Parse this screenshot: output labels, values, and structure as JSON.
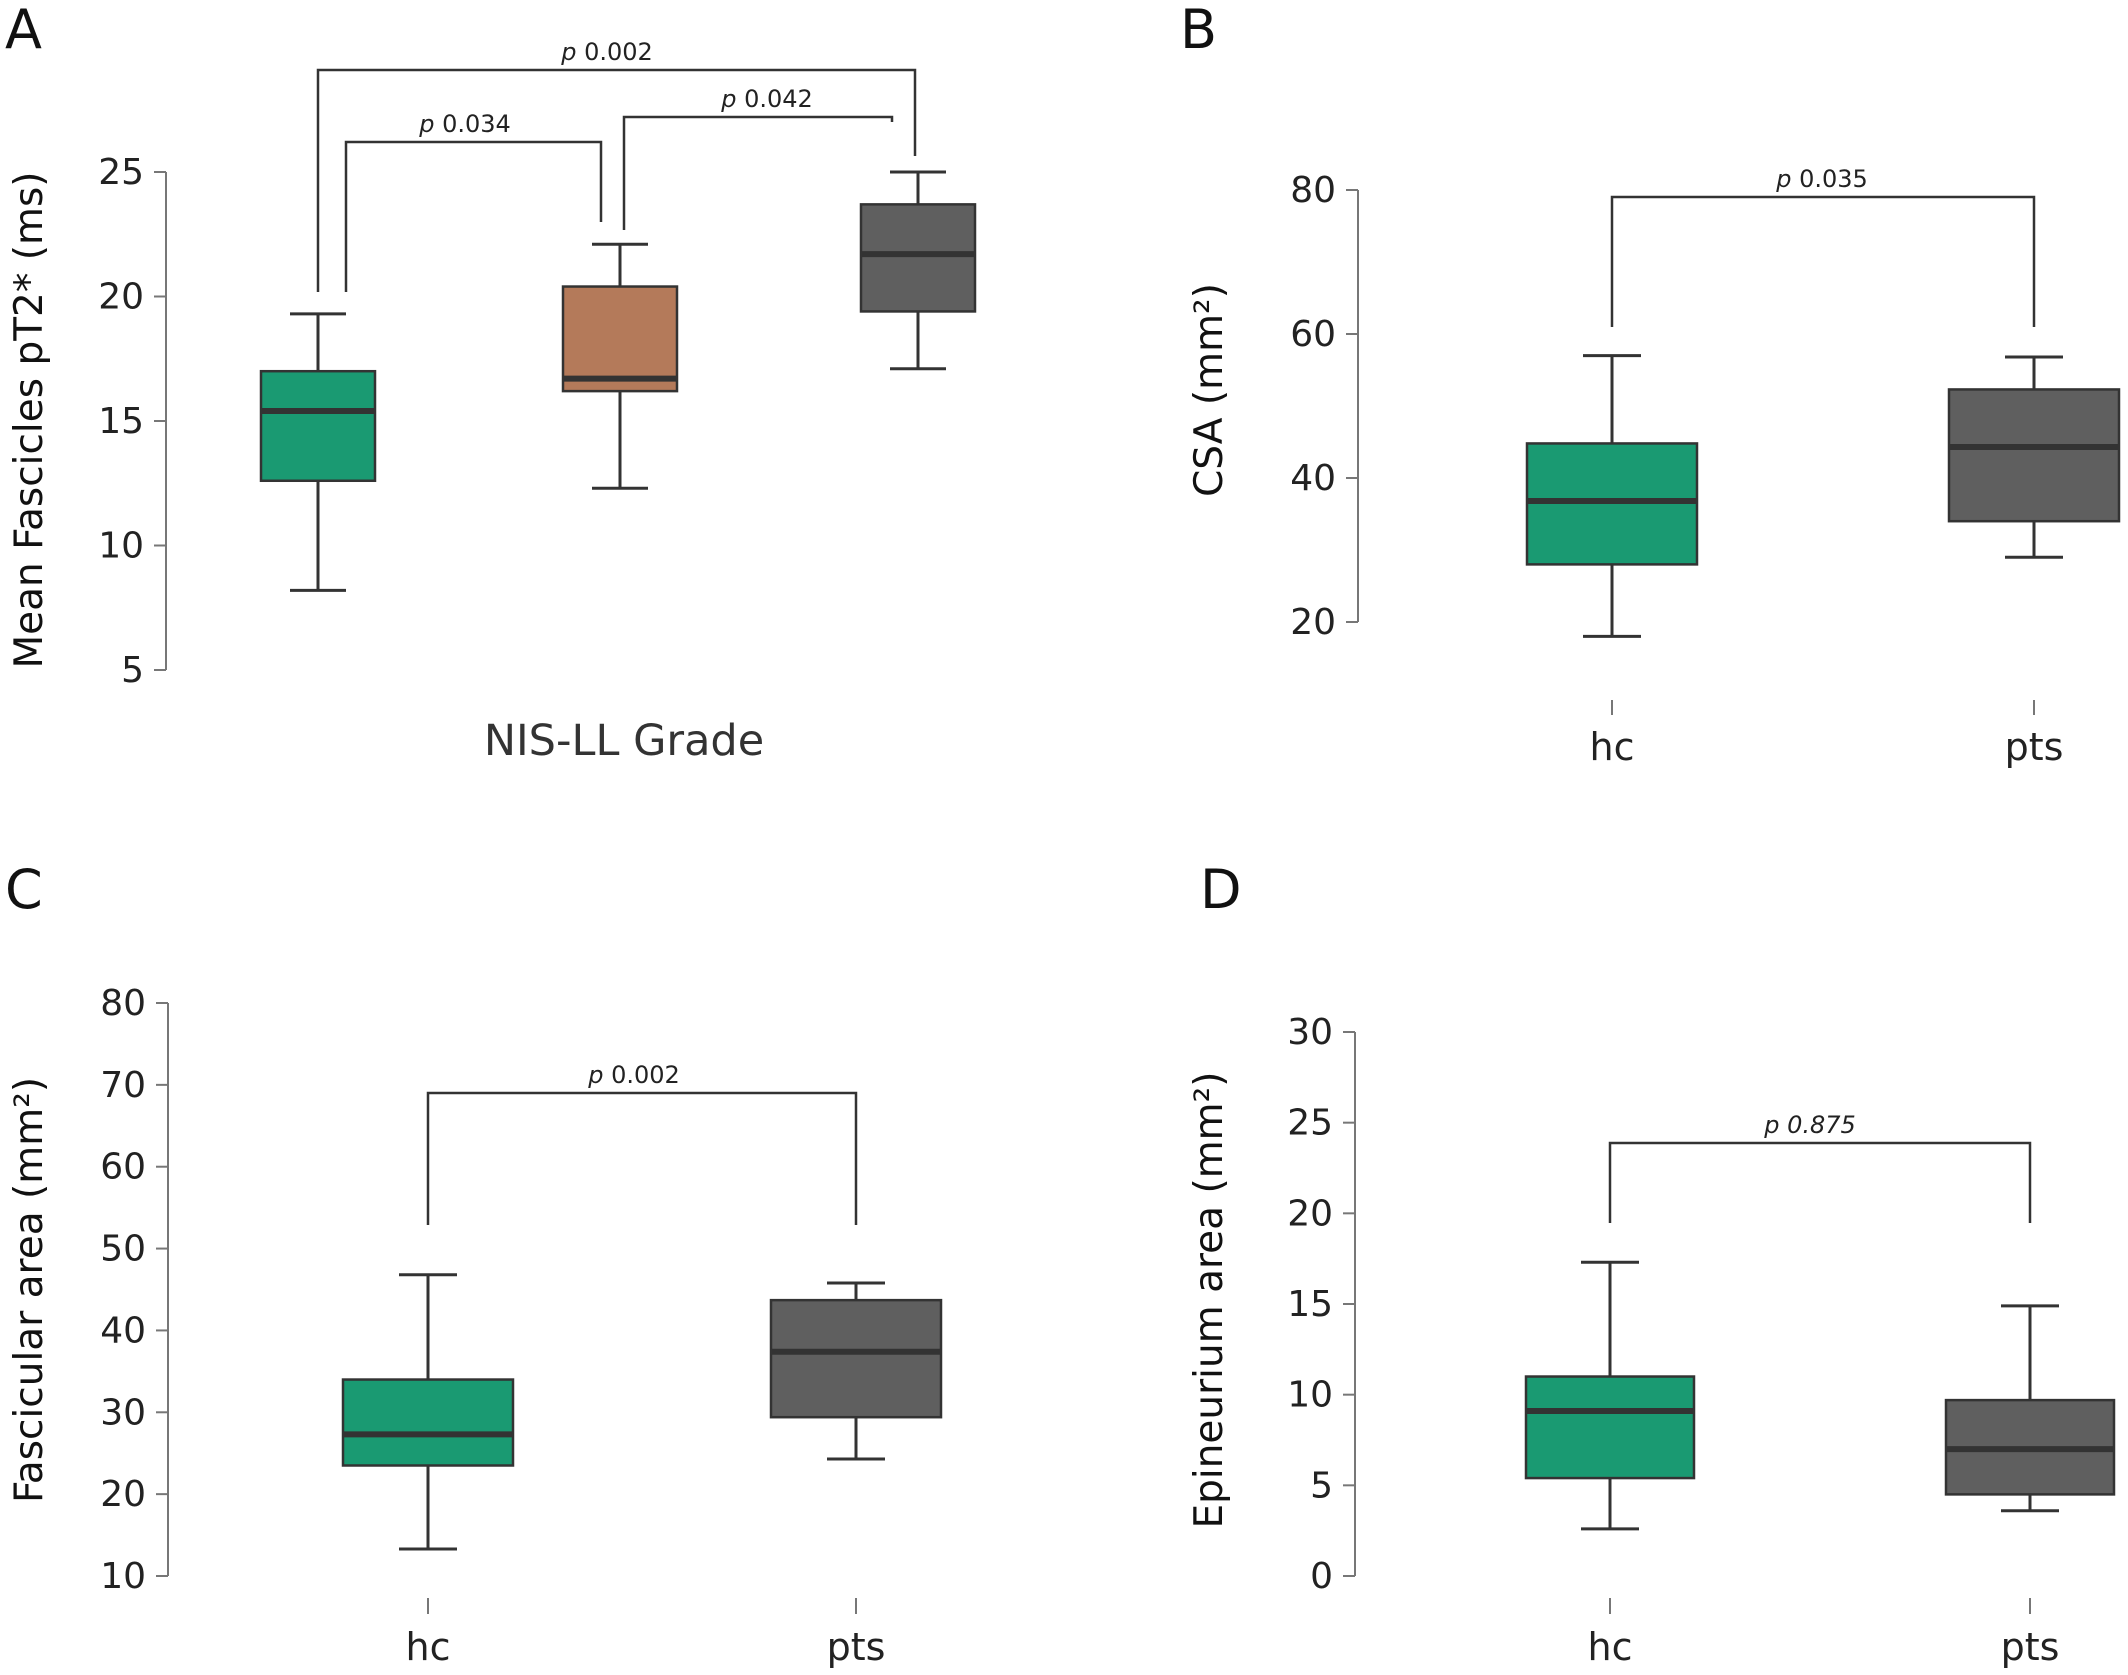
{
  "chart_data": [
    {
      "panel": "A",
      "type": "boxplot",
      "ylabel": "Mean Fascicles pT2* (ms)",
      "xlabel": "NIS-LL Grade",
      "ylim": [
        5,
        25
      ],
      "yticks": [
        5,
        10,
        15,
        20,
        25
      ],
      "categories": [
        "",
        "",
        ""
      ],
      "boxes": [
        {
          "min": 8.2,
          "q1": 12.6,
          "median": 15.4,
          "q3": 17.0,
          "max": 19.3,
          "color": "#1a9a72"
        },
        {
          "min": 12.3,
          "q1": 16.2,
          "median": 16.7,
          "q3": 20.4,
          "max": 22.1,
          "color": "#b47a5a"
        },
        {
          "min": 17.1,
          "q1": 19.4,
          "median": 21.7,
          "q3": 23.7,
          "max": 25.0,
          "color": "#5f5f5f"
        }
      ],
      "comparisons": [
        {
          "from": 0,
          "to": 1,
          "p_prefix": "p",
          "p_value": "0.034"
        },
        {
          "from": 1,
          "to": 2,
          "p_prefix": "p",
          "p_value": "0.042"
        },
        {
          "from": 0,
          "to": 2,
          "p_prefix": "p",
          "p_value": "0.002"
        }
      ]
    },
    {
      "panel": "B",
      "type": "boxplot",
      "ylabel": "CSA (mm²)",
      "xlabel": "",
      "ylim": [
        20,
        80
      ],
      "yticks": [
        20,
        40,
        60,
        80
      ],
      "categories": [
        "hc",
        "pts"
      ],
      "boxes": [
        {
          "min": 18.0,
          "q1": 28.0,
          "median": 36.8,
          "q3": 44.8,
          "max": 57.0,
          "color": "#1a9a72"
        },
        {
          "min": 29.0,
          "q1": 34.0,
          "median": 44.3,
          "q3": 52.3,
          "max": 56.8,
          "color": "#5f5f5f"
        }
      ],
      "comparisons": [
        {
          "from": 0,
          "to": 1,
          "p_prefix": "p",
          "p_value": "0.035"
        }
      ]
    },
    {
      "panel": "C",
      "type": "boxplot",
      "ylabel": "Fascicular area (mm²)",
      "xlabel": "",
      "ylim": [
        10,
        80
      ],
      "yticks": [
        10,
        20,
        30,
        40,
        50,
        60,
        70,
        80
      ],
      "categories": [
        "hc",
        "pts"
      ],
      "boxes": [
        {
          "min": 13.3,
          "q1": 23.5,
          "median": 27.3,
          "q3": 34.0,
          "max": 46.8,
          "color": "#1a9a72"
        },
        {
          "min": 24.3,
          "q1": 29.4,
          "median": 37.4,
          "q3": 43.7,
          "max": 45.8,
          "color": "#5f5f5f"
        }
      ],
      "comparisons": [
        {
          "from": 0,
          "to": 1,
          "p_prefix": "p",
          "p_value": "0.002"
        }
      ]
    },
    {
      "panel": "D",
      "type": "boxplot",
      "ylabel": "Epineurium area (mm²)",
      "xlabel": "",
      "ylim": [
        0,
        30
      ],
      "yticks": [
        0,
        5,
        10,
        15,
        20,
        25,
        30
      ],
      "categories": [
        "hc",
        "pts"
      ],
      "boxes": [
        {
          "min": 2.6,
          "q1": 5.4,
          "median": 9.1,
          "q3": 11.0,
          "max": 17.3,
          "color": "#1a9a72"
        },
        {
          "min": 3.6,
          "q1": 4.5,
          "median": 7.0,
          "q3": 9.7,
          "max": 14.9,
          "color": "#5f5f5f"
        }
      ],
      "comparisons": [
        {
          "from": 0,
          "to": 1,
          "p_prefix": "p",
          "p_value": "0.875"
        }
      ]
    }
  ]
}
